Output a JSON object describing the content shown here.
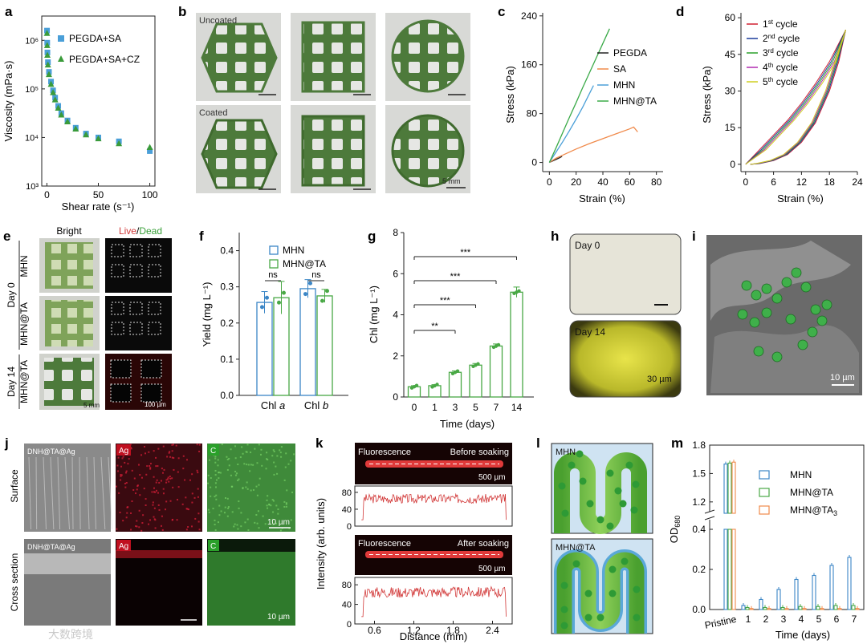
{
  "figure": {
    "panel_letters": {
      "a": "a",
      "b": "b",
      "c": "c",
      "d": "d",
      "e": "e",
      "f": "f",
      "g": "g",
      "h": "h",
      "i": "i",
      "j": "j",
      "k": "k",
      "l": "l",
      "m": "m"
    },
    "b": {
      "uncoated": "Uncoated",
      "coated": "Coated",
      "scale": "5 mm"
    },
    "e": {
      "bright": "Bright",
      "live": "Live",
      "slash": "/",
      "dead": "Dead",
      "row_labels": [
        "MHN",
        "MHN@TA",
        "MHN@TA"
      ],
      "day0": "Day 0",
      "day14": "Day 14",
      "scale_bright": "5 mm",
      "scale_fluo": "100 µm"
    },
    "h": {
      "day0": "Day 0",
      "day14": "Day 14",
      "scale": "30 µm"
    },
    "i": {
      "scale": "10 µm"
    },
    "j": {
      "sem_label": "DNH@TA@Ag",
      "ag": "Ag",
      "c": "C",
      "surface": "Surface",
      "cross": "Cross section",
      "scale": "10 µm"
    },
    "k": {
      "fluorescence": "Fluorescence",
      "before": "Before soaking",
      "after": "After soaking",
      "scale": "500 µm"
    },
    "l": {
      "mhn": "MHN",
      "mhn_ta": "MHN@TA"
    },
    "watermark": "大数跨境"
  },
  "chart_data": [
    {
      "panel": "a",
      "type": "scatter",
      "xlabel": "Shear rate (s⁻¹)",
      "ylabel": "Viscosity (mPa·s)",
      "xlim": [
        -5,
        105
      ],
      "ylim_log": [
        3,
        6.5
      ],
      "xticks": [
        0,
        50,
        100
      ],
      "yticks_labels": [
        "10³",
        "10⁴",
        "10⁵",
        "10⁶"
      ],
      "series": [
        {
          "name": "PEGDA+SA",
          "color": "#4a9fd8",
          "marker": "square",
          "points": [
            [
              0.1,
              6.2
            ],
            [
              0.3,
              5.95
            ],
            [
              0.5,
              5.75
            ],
            [
              1,
              5.55
            ],
            [
              2,
              5.35
            ],
            [
              4,
              5.15
            ],
            [
              6,
              4.97
            ],
            [
              8,
              4.82
            ],
            [
              11,
              4.65
            ],
            [
              14,
              4.5
            ],
            [
              20,
              4.35
            ],
            [
              28,
              4.2
            ],
            [
              38,
              4.08
            ],
            [
              50,
              4.0
            ],
            [
              70,
              3.92
            ],
            [
              100,
              3.72
            ]
          ]
        },
        {
          "name": "PEGDA+SA+CZ",
          "color": "#3a9b3a",
          "marker": "triangle",
          "points": [
            [
              0.1,
              6.15
            ],
            [
              0.3,
              5.9
            ],
            [
              0.5,
              5.7
            ],
            [
              1,
              5.5
            ],
            [
              2,
              5.3
            ],
            [
              4,
              5.1
            ],
            [
              6,
              4.93
            ],
            [
              8,
              4.78
            ],
            [
              11,
              4.61
            ],
            [
              14,
              4.47
            ],
            [
              20,
              4.33
            ],
            [
              28,
              4.18
            ],
            [
              38,
              4.06
            ],
            [
              50,
              3.98
            ],
            [
              70,
              3.88
            ],
            [
              100,
              3.8
            ]
          ]
        }
      ]
    },
    {
      "panel": "c",
      "type": "line",
      "xlabel": "Strain (%)",
      "ylabel": "Stress (kPa)",
      "xlim": [
        -5,
        85
      ],
      "ylim": [
        -15,
        245
      ],
      "xticks": [
        0,
        20,
        40,
        60,
        80
      ],
      "yticks": [
        0,
        80,
        160,
        240
      ],
      "series": [
        {
          "name": "PEGDA",
          "color": "#222222",
          "x": [
            0,
            2,
            4,
            6,
            8,
            9.5
          ],
          "y": [
            0,
            2,
            4,
            6,
            8,
            10
          ]
        },
        {
          "name": "SA",
          "color": "#f08a4b",
          "x": [
            0,
            5,
            10,
            20,
            30,
            40,
            50,
            60,
            63,
            66
          ],
          "y": [
            0,
            7,
            12,
            22,
            31,
            39,
            47,
            55,
            58,
            50
          ]
        },
        {
          "name": "MHN",
          "color": "#4a9fd8",
          "x": [
            0,
            5,
            10,
            15,
            20,
            25,
            30,
            33
          ],
          "y": [
            0,
            17,
            34,
            52,
            71,
            91,
            113,
            126
          ]
        },
        {
          "name": "MHN@TA",
          "color": "#3aaa48",
          "x": [
            0,
            5,
            10,
            15,
            20,
            25,
            30,
            35,
            40,
            45
          ],
          "y": [
            0,
            24,
            49,
            74,
            98,
            123,
            147,
            171,
            195,
            219
          ]
        }
      ]
    },
    {
      "panel": "d",
      "type": "line",
      "xlabel": "Strain (%)",
      "ylabel": "Stress (kPa)",
      "xlim": [
        -1,
        24
      ],
      "ylim": [
        -3,
        62
      ],
      "xticks": [
        0,
        6,
        12,
        18,
        24
      ],
      "yticks": [
        0,
        15,
        30,
        45,
        60
      ],
      "series": [
        {
          "name": "1st cycle",
          "color": "#d02030"
        },
        {
          "name": "2nd cycle",
          "color": "#1a3a9a"
        },
        {
          "name": "3rd cycle",
          "color": "#2aa02a"
        },
        {
          "name": "4th cycle",
          "color": "#b02ab0"
        },
        {
          "name": "5th cycle",
          "color": "#cfcf20"
        }
      ],
      "loading": {
        "x": [
          0,
          3,
          6,
          9,
          12,
          15,
          18,
          21.5
        ],
        "y": [
          0,
          6,
          12,
          18,
          25,
          33,
          42,
          55
        ]
      },
      "unloading": {
        "x": [
          21.5,
          20,
          18,
          15,
          12,
          9,
          6,
          3,
          1
        ],
        "y": [
          55,
          42,
          30,
          17,
          9,
          4,
          1.5,
          0.3,
          0
        ]
      }
    },
    {
      "panel": "f",
      "type": "bar",
      "ylabel": "Yield (mg L⁻¹)",
      "categories": [
        "Chl a",
        "Chl b"
      ],
      "ylim": [
        0,
        0.45
      ],
      "yticks": [
        0.0,
        0.1,
        0.2,
        0.3,
        0.4
      ],
      "series": [
        {
          "name": "MHN",
          "color": "#3b86c6",
          "values": [
            0.257,
            0.295
          ],
          "errors": [
            0.03,
            0.025
          ]
        },
        {
          "name": "MHN@TA",
          "color": "#49a845",
          "values": [
            0.27,
            0.275
          ],
          "errors": [
            0.045,
            0.018
          ]
        }
      ],
      "annotations": [
        "ns",
        "ns"
      ]
    },
    {
      "panel": "g",
      "type": "bar",
      "xlabel": "Time (days)",
      "ylabel": "Chl (mg L⁻¹)",
      "categories": [
        "0",
        "1",
        "3",
        "5",
        "7",
        "14"
      ],
      "values": [
        0.5,
        0.55,
        1.2,
        1.55,
        2.48,
        5.1
      ],
      "errors": [
        0.05,
        0.05,
        0.07,
        0.08,
        0.1,
        0.25
      ],
      "ylim": [
        0,
        8
      ],
      "yticks": [
        0,
        2,
        4,
        6,
        8
      ],
      "color": "#49a845",
      "significance": [
        {
          "from": 0,
          "to": 2,
          "label": "**"
        },
        {
          "from": 0,
          "to": 3,
          "label": "***"
        },
        {
          "from": 0,
          "to": 4,
          "label": "***"
        },
        {
          "from": 0,
          "to": 5,
          "label": "***"
        }
      ]
    },
    {
      "panel": "k",
      "type": "line",
      "xlabel": "Distance (mm)",
      "ylabel": "Intensity (arb. units)",
      "xlim": [
        0.3,
        2.7
      ],
      "ylim": [
        0,
        95
      ],
      "xticks": [
        0.6,
        1.2,
        1.8,
        2.4
      ],
      "yticks": [
        0,
        40,
        80
      ],
      "color": "#d23a3a",
      "level": 65
    },
    {
      "panel": "m",
      "type": "bar",
      "xlabel": "Time (days)",
      "ylabel": "OD680",
      "categories": [
        "Pristine",
        "1",
        "2",
        "3",
        "4",
        "5",
        "6",
        "7"
      ],
      "yticks_upper": [
        1.2,
        1.5,
        1.8
      ],
      "yticks_lower": [
        0.0,
        0.2,
        0.4
      ],
      "series": [
        {
          "name": "MHN",
          "color": "#3b86c6",
          "values": [
            1.6,
            0.02,
            0.05,
            0.1,
            0.15,
            0.17,
            0.22,
            0.26
          ]
        },
        {
          "name": "MHN@TA",
          "color": "#49a845",
          "values": [
            1.61,
            0.01,
            0.01,
            0.01,
            0.015,
            0.015,
            0.02,
            0.02
          ]
        },
        {
          "name": "MHN@TA₃",
          "color": "#f08a4b",
          "values": [
            1.62,
            0.005,
            0.005,
            0.005,
            0.005,
            0.005,
            0.005,
            0.005
          ]
        }
      ]
    }
  ]
}
